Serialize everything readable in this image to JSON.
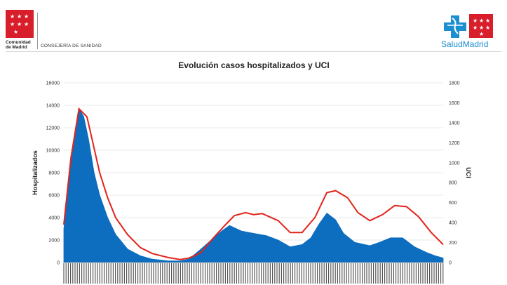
{
  "header": {
    "org_name": "Comunidad de Madrid",
    "org_line1": "Comunidad",
    "org_line2": "de Madrid",
    "department": "CONSEJERÍA DE SANIDAD",
    "brand_left": "Salud",
    "brand_right": "Madrid",
    "flag_icon": "madrid-flag-icon",
    "cross_icon": "health-cross-icon",
    "colors": {
      "flag": "#d81e2b",
      "brand": "#1c8fd1",
      "star": "#ffffff"
    }
  },
  "chart_data": {
    "type": "area",
    "title": "Evolución casos hospitalizados y UCI",
    "ylabel": "Hospitalizados",
    "ylabel_right": "UCI",
    "ylim": [
      0,
      16000
    ],
    "ylim_right": [
      0,
      1800
    ],
    "yticks": [
      "0",
      "2000",
      "4000",
      "6000",
      "8000",
      "10000",
      "12000",
      "14000",
      "16000"
    ],
    "yticks_right": [
      "0",
      "200",
      "400",
      "600",
      "800",
      "1000",
      "1200",
      "1400",
      "1600",
      "1800"
    ],
    "x_range": [
      "2020-03-01",
      "2021-06-20"
    ],
    "x_tick_label": "DD/MM/YYYY (daily, rotated, illegible)",
    "grid": true,
    "legend": "none",
    "series": [
      {
        "axis": "left",
        "kind": "area",
        "color": "#0d6dbf",
        "x": [
          "2020-03-01",
          "2020-03-10",
          "2020-03-20",
          "2020-03-26",
          "2020-04-01",
          "2020-04-08",
          "2020-04-15",
          "2020-04-25",
          "2020-05-05",
          "2020-05-20",
          "2020-06-05",
          "2020-06-20",
          "2020-07-10",
          "2020-07-25",
          "2020-08-05",
          "2020-08-20",
          "2020-09-05",
          "2020-09-15",
          "2020-09-25",
          "2020-10-10",
          "2020-10-25",
          "2020-11-10",
          "2020-11-25",
          "2020-12-10",
          "2020-12-25",
          "2021-01-05",
          "2021-01-15",
          "2021-01-25",
          "2021-02-05",
          "2021-02-15",
          "2021-03-01",
          "2021-03-20",
          "2021-04-01",
          "2021-04-15",
          "2021-04-30",
          "2021-05-15",
          "2021-05-30",
          "2021-06-10",
          "2021-06-20"
        ],
        "values": [
          3000,
          9000,
          13700,
          13000,
          11000,
          8000,
          6000,
          4000,
          2500,
          1200,
          600,
          300,
          150,
          150,
          300,
          1200,
          2200,
          2800,
          3300,
          2800,
          2600,
          2400,
          2000,
          1400,
          1600,
          2200,
          3400,
          4400,
          3800,
          2600,
          1800,
          1500,
          1800,
          2200,
          2200,
          1400,
          900,
          600,
          400
        ]
      },
      {
        "axis": "right",
        "kind": "line",
        "color": "#e2231a",
        "x": [
          "2020-03-01",
          "2020-03-10",
          "2020-03-20",
          "2020-03-30",
          "2020-04-05",
          "2020-04-15",
          "2020-04-25",
          "2020-05-05",
          "2020-05-20",
          "2020-06-05",
          "2020-06-20",
          "2020-07-10",
          "2020-07-25",
          "2020-08-05",
          "2020-08-20",
          "2020-09-05",
          "2020-09-20",
          "2020-10-01",
          "2020-10-15",
          "2020-10-25",
          "2020-11-05",
          "2020-11-25",
          "2020-12-10",
          "2020-12-25",
          "2021-01-10",
          "2021-01-25",
          "2021-02-05",
          "2021-02-20",
          "2021-03-05",
          "2021-03-20",
          "2021-04-05",
          "2021-04-20",
          "2021-05-05",
          "2021-05-20",
          "2021-06-05",
          "2021-06-20"
        ],
        "values": [
          380,
          1050,
          1540,
          1460,
          1250,
          900,
          650,
          450,
          280,
          150,
          90,
          50,
          30,
          45,
          100,
          250,
          380,
          470,
          500,
          480,
          490,
          420,
          300,
          300,
          450,
          700,
          720,
          650,
          500,
          420,
          480,
          570,
          560,
          460,
          300,
          180
        ]
      }
    ]
  }
}
